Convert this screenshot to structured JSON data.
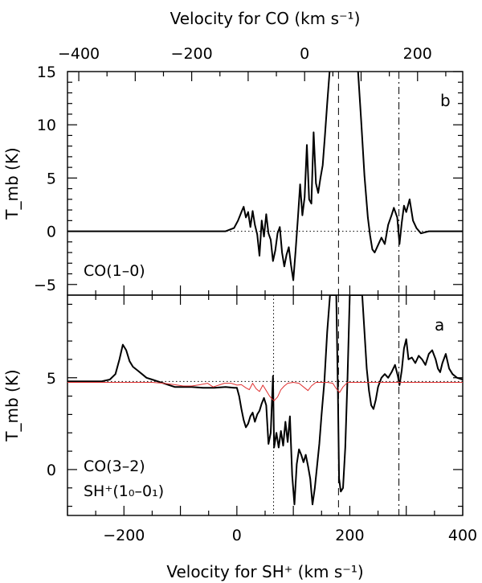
{
  "chart_data": [
    {
      "type": "line",
      "panel": "b",
      "panel_label": "b",
      "species_label": "CO(1–0)",
      "top_axis": {
        "label": "Velocity for CO (km s⁻¹)",
        "range": [
          -420,
          280
        ],
        "ticks": [
          -400,
          -200,
          0,
          200
        ],
        "tick_labels": [
          "−400",
          "−200",
          "0",
          "200"
        ]
      },
      "ylabel": "T_mb (K)",
      "ylim": [
        -6,
        15
      ],
      "yticks": [
        -5,
        0,
        5,
        10,
        15
      ],
      "ytick_labels": [
        "−5",
        "0",
        "5",
        "10",
        "15"
      ],
      "baseline": 0,
      "vlines_sh": [
        {
          "x": 180,
          "style": "dashed"
        },
        {
          "x": 287,
          "style": "dashdot"
        }
      ],
      "series": [
        {
          "name": "",
          "color": "#000000",
          "points": [
            [
              -300,
              0
            ],
            [
              -260,
              0
            ],
            [
              -220,
              0
            ],
            [
              -180,
              0
            ],
            [
              -140,
              0
            ],
            [
              -100,
              0
            ],
            [
              -60,
              0
            ],
            [
              -20,
              0
            ],
            [
              -5,
              0.3
            ],
            [
              2,
              1.0
            ],
            [
              8,
              1.8
            ],
            [
              12,
              2.3
            ],
            [
              16,
              1.3
            ],
            [
              20,
              1.8
            ],
            [
              24,
              0.4
            ],
            [
              28,
              1.9
            ],
            [
              32,
              0.6
            ],
            [
              36,
              -0.3
            ],
            [
              40,
              -2.3
            ],
            [
              44,
              1.0
            ],
            [
              48,
              -0.5
            ],
            [
              52,
              1.6
            ],
            [
              56,
              -0.2
            ],
            [
              60,
              -0.8
            ],
            [
              64,
              -2.8
            ],
            [
              68,
              -1.8
            ],
            [
              72,
              -0.2
            ],
            [
              76,
              0.4
            ],
            [
              80,
              -2.0
            ],
            [
              84,
              -3.3
            ],
            [
              88,
              -2.2
            ],
            [
              92,
              -1.5
            ],
            [
              96,
              -3.2
            ],
            [
              100,
              -4.6
            ],
            [
              104,
              -1.8
            ],
            [
              108,
              1.2
            ],
            [
              112,
              4.4
            ],
            [
              116,
              1.5
            ],
            [
              120,
              3.2
            ],
            [
              124,
              8.1
            ],
            [
              128,
              3.0
            ],
            [
              132,
              2.6
            ],
            [
              136,
              9.3
            ],
            [
              140,
              4.5
            ],
            [
              144,
              3.6
            ],
            [
              148,
              5.0
            ],
            [
              152,
              6.2
            ],
            [
              156,
              9.0
            ],
            [
              160,
              12.0
            ],
            [
              165,
              15.5
            ],
            [
              214,
              15.5
            ],
            [
              220,
              10.5
            ],
            [
              226,
              5.2
            ],
            [
              232,
              1.3
            ],
            [
              236,
              -0.4
            ],
            [
              240,
              -1.7
            ],
            [
              244,
              -2.0
            ],
            [
              250,
              -1.3
            ],
            [
              256,
              -0.6
            ],
            [
              262,
              -1.2
            ],
            [
              268,
              0.6
            ],
            [
              274,
              1.5
            ],
            [
              278,
              2.2
            ],
            [
              284,
              1.3
            ],
            [
              288,
              -1.2
            ],
            [
              292,
              0.8
            ],
            [
              296,
              2.4
            ],
            [
              300,
              1.8
            ],
            [
              306,
              3.0
            ],
            [
              312,
              1.0
            ],
            [
              318,
              0.3
            ],
            [
              326,
              -0.2
            ],
            [
              340,
              0
            ],
            [
              360,
              0
            ],
            [
              380,
              0
            ],
            [
              400,
              0
            ]
          ]
        }
      ]
    },
    {
      "type": "line",
      "panel": "a",
      "panel_label": "a",
      "species_label": "CO(3–2)",
      "species_label_2": "SH⁺(1₀–0₁)",
      "xlabel": "Velocity for SH⁺ (km s⁻¹)",
      "xlim": [
        -300,
        400
      ],
      "xticks": [
        -200,
        0,
        200,
        400
      ],
      "xtick_labels": [
        "−200",
        "0",
        "200",
        "400"
      ],
      "ylabel": "T_mb (K)",
      "ylim": [
        -2.5,
        9.5
      ],
      "yticks": [
        0,
        5
      ],
      "ytick_labels": [
        "0",
        "5"
      ],
      "baseline": 4.8,
      "vlines_sh": [
        {
          "x": 65,
          "style": "dotted"
        },
        {
          "x": 180,
          "style": "dashed"
        },
        {
          "x": 287,
          "style": "dashdot"
        }
      ],
      "series": [
        {
          "name": "",
          "color": "#000000",
          "points": [
            [
              -300,
              4.8
            ],
            [
              -280,
              4.8
            ],
            [
              -260,
              4.8
            ],
            [
              -240,
              4.8
            ],
            [
              -225,
              4.9
            ],
            [
              -215,
              5.2
            ],
            [
              -208,
              6.0
            ],
            [
              -202,
              6.8
            ],
            [
              -196,
              6.5
            ],
            [
              -190,
              5.9
            ],
            [
              -184,
              5.6
            ],
            [
              -176,
              5.4
            ],
            [
              -168,
              5.2
            ],
            [
              -160,
              5.0
            ],
            [
              -150,
              4.9
            ],
            [
              -140,
              4.8
            ],
            [
              -130,
              4.7
            ],
            [
              -120,
              4.6
            ],
            [
              -110,
              4.5
            ],
            [
              -100,
              4.5
            ],
            [
              -80,
              4.5
            ],
            [
              -60,
              4.45
            ],
            [
              -40,
              4.45
            ],
            [
              -20,
              4.5
            ],
            [
              -5,
              4.45
            ],
            [
              0,
              4.45
            ],
            [
              4,
              4.0
            ],
            [
              8,
              3.3
            ],
            [
              12,
              2.7
            ],
            [
              16,
              2.3
            ],
            [
              20,
              2.5
            ],
            [
              24,
              2.9
            ],
            [
              28,
              3.1
            ],
            [
              32,
              2.6
            ],
            [
              36,
              3.0
            ],
            [
              40,
              3.2
            ],
            [
              44,
              3.6
            ],
            [
              48,
              3.9
            ],
            [
              52,
              3.5
            ],
            [
              56,
              1.4
            ],
            [
              60,
              2.0
            ],
            [
              64,
              5.1
            ],
            [
              66,
              1.2
            ],
            [
              70,
              2.0
            ],
            [
              74,
              1.2
            ],
            [
              78,
              2.1
            ],
            [
              82,
              1.3
            ],
            [
              86,
              2.6
            ],
            [
              90,
              1.5
            ],
            [
              94,
              2.9
            ],
            [
              98,
              -0.3
            ],
            [
              102,
              -1.9
            ],
            [
              106,
              0.3
            ],
            [
              110,
              1.1
            ],
            [
              114,
              0.8
            ],
            [
              118,
              0.4
            ],
            [
              122,
              0.8
            ],
            [
              126,
              0.2
            ],
            [
              130,
              -0.5
            ],
            [
              134,
              -1.9
            ],
            [
              138,
              -1.0
            ],
            [
              142,
              0.2
            ],
            [
              146,
              1.4
            ],
            [
              150,
              3.0
            ],
            [
              155,
              4.8
            ],
            [
              160,
              7.5
            ],
            [
              165,
              9.5
            ],
            [
              176,
              9.5
            ],
            [
              179,
              4.0
            ],
            [
              181,
              -0.5
            ],
            [
              184,
              -1.2
            ],
            [
              188,
              -1.0
            ],
            [
              192,
              1.2
            ],
            [
              196,
              5.0
            ],
            [
              200,
              9.5
            ],
            [
              222,
              9.5
            ],
            [
              226,
              7.5
            ],
            [
              230,
              5.5
            ],
            [
              234,
              4.3
            ],
            [
              238,
              3.5
            ],
            [
              242,
              3.3
            ],
            [
              246,
              3.8
            ],
            [
              250,
              4.5
            ],
            [
              256,
              5.0
            ],
            [
              262,
              5.2
            ],
            [
              268,
              5.0
            ],
            [
              274,
              5.3
            ],
            [
              280,
              5.7
            ],
            [
              285,
              5.1
            ],
            [
              288,
              4.6
            ],
            [
              292,
              5.4
            ],
            [
              296,
              6.6
            ],
            [
              300,
              7.1
            ],
            [
              304,
              6.0
            ],
            [
              310,
              6.1
            ],
            [
              316,
              5.8
            ],
            [
              322,
              6.2
            ],
            [
              328,
              6.0
            ],
            [
              334,
              5.7
            ],
            [
              340,
              6.3
            ],
            [
              346,
              6.5
            ],
            [
              352,
              6.0
            ],
            [
              356,
              5.5
            ],
            [
              360,
              5.3
            ],
            [
              364,
              5.8
            ],
            [
              370,
              6.3
            ],
            [
              376,
              5.5
            ],
            [
              382,
              5.2
            ],
            [
              390,
              5.0
            ],
            [
              400,
              4.9
            ]
          ]
        },
        {
          "name": "",
          "color": "#e03030",
          "points": [
            [
              -300,
              4.75
            ],
            [
              -260,
              4.75
            ],
            [
              -220,
              4.75
            ],
            [
              -180,
              4.75
            ],
            [
              -150,
              4.75
            ],
            [
              -130,
              4.7
            ],
            [
              -110,
              4.62
            ],
            [
              -95,
              4.55
            ],
            [
              -80,
              4.55
            ],
            [
              -65,
              4.62
            ],
            [
              -52,
              4.7
            ],
            [
              -42,
              4.5
            ],
            [
              -32,
              4.6
            ],
            [
              -22,
              4.7
            ],
            [
              -10,
              4.7
            ],
            [
              0,
              4.6
            ],
            [
              8,
              4.62
            ],
            [
              16,
              4.45
            ],
            [
              22,
              4.35
            ],
            [
              28,
              4.7
            ],
            [
              34,
              4.4
            ],
            [
              40,
              4.25
            ],
            [
              46,
              4.6
            ],
            [
              52,
              4.3
            ],
            [
              58,
              4.0
            ],
            [
              62,
              3.85
            ],
            [
              66,
              3.75
            ],
            [
              72,
              3.95
            ],
            [
              78,
              4.35
            ],
            [
              84,
              4.55
            ],
            [
              90,
              4.7
            ],
            [
              100,
              4.75
            ],
            [
              110,
              4.7
            ],
            [
              120,
              4.45
            ],
            [
              126,
              4.3
            ],
            [
              132,
              4.55
            ],
            [
              140,
              4.75
            ],
            [
              150,
              4.75
            ],
            [
              160,
              4.75
            ],
            [
              170,
              4.7
            ],
            [
              176,
              4.4
            ],
            [
              182,
              4.2
            ],
            [
              188,
              4.5
            ],
            [
              196,
              4.75
            ],
            [
              220,
              4.75
            ],
            [
              260,
              4.75
            ],
            [
              300,
              4.75
            ],
            [
              340,
              4.75
            ],
            [
              380,
              4.75
            ],
            [
              400,
              4.75
            ]
          ]
        }
      ]
    }
  ]
}
